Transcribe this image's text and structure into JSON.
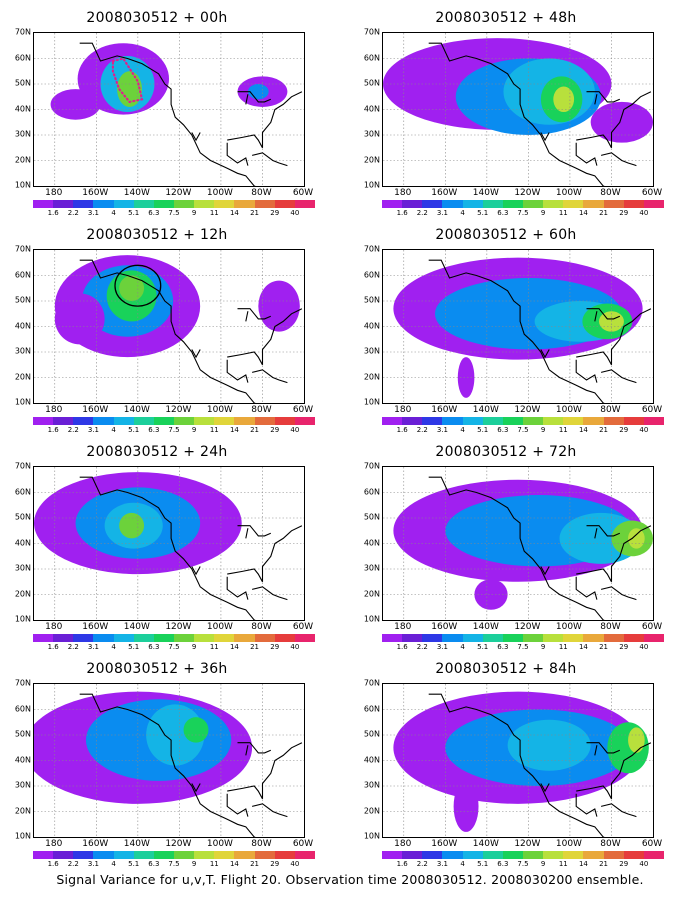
{
  "panels": [
    {
      "title": "2008030512 + 00h",
      "blobs": [
        {
          "lon": -147,
          "lat": 52,
          "rx": 22,
          "ry": 14,
          "level": 1
        },
        {
          "lon": -145,
          "lat": 50,
          "rx": 13,
          "ry": 11,
          "level": 3
        },
        {
          "lon": -144,
          "lat": 48,
          "rx": 6,
          "ry": 7,
          "level": 5
        },
        {
          "lon": -170,
          "lat": 42,
          "rx": 12,
          "ry": 6,
          "level": 1
        },
        {
          "lon": -80,
          "lat": 47,
          "rx": 12,
          "ry": 6,
          "level": 1
        },
        {
          "lon": -82,
          "lat": 47,
          "rx": 5,
          "ry": 3,
          "level": 2
        }
      ],
      "overlay": {
        "type": "dotted",
        "points": [
          [
            -152,
            59
          ],
          [
            -147,
            60
          ],
          [
            -140,
            51
          ],
          [
            -138,
            44
          ],
          [
            -144,
            43
          ],
          [
            -149,
            48
          ],
          [
            -152,
            55
          ],
          [
            -152,
            59
          ]
        ]
      }
    },
    {
      "title": "2008030512 + 48h",
      "blobs": [
        {
          "lon": -135,
          "lat": 50,
          "rx": 55,
          "ry": 18,
          "level": 1
        },
        {
          "lon": -120,
          "lat": 45,
          "rx": 35,
          "ry": 15,
          "level": 2
        },
        {
          "lon": -110,
          "lat": 47,
          "rx": 22,
          "ry": 13,
          "level": 3
        },
        {
          "lon": -104,
          "lat": 44,
          "rx": 10,
          "ry": 9,
          "level": 4
        },
        {
          "lon": -103,
          "lat": 44,
          "rx": 5,
          "ry": 5,
          "level": 6
        },
        {
          "lon": -75,
          "lat": 35,
          "rx": 15,
          "ry": 8,
          "level": 1
        }
      ]
    },
    {
      "title": "2008030512 + 12h",
      "blobs": [
        {
          "lon": -145,
          "lat": 48,
          "rx": 35,
          "ry": 20,
          "level": 1
        },
        {
          "lon": -145,
          "lat": 50,
          "rx": 22,
          "ry": 14,
          "level": 2
        },
        {
          "lon": -143,
          "lat": 52,
          "rx": 12,
          "ry": 10,
          "level": 4
        },
        {
          "lon": -143,
          "lat": 55,
          "rx": 6,
          "ry": 5,
          "level": 5
        },
        {
          "lon": -168,
          "lat": 43,
          "rx": 12,
          "ry": 10,
          "level": 1
        },
        {
          "lon": -72,
          "lat": 48,
          "rx": 10,
          "ry": 10,
          "level": 1
        }
      ],
      "overlay": {
        "type": "ellipse",
        "lon": -140,
        "lat": 56,
        "rx": 11,
        "ry": 8
      }
    },
    {
      "title": "2008030512 + 60h",
      "blobs": [
        {
          "lon": -125,
          "lat": 47,
          "rx": 60,
          "ry": 20,
          "level": 1
        },
        {
          "lon": -120,
          "lat": 45,
          "rx": 45,
          "ry": 14,
          "level": 2
        },
        {
          "lon": -95,
          "lat": 42,
          "rx": 22,
          "ry": 8,
          "level": 3
        },
        {
          "lon": -82,
          "lat": 42,
          "rx": 12,
          "ry": 7,
          "level": 4
        },
        {
          "lon": -80,
          "lat": 42,
          "rx": 6,
          "ry": 4,
          "level": 6
        },
        {
          "lon": -150,
          "lat": 20,
          "rx": 4,
          "ry": 8,
          "level": 1
        }
      ]
    },
    {
      "title": "2008030512 + 24h",
      "blobs": [
        {
          "lon": -140,
          "lat": 48,
          "rx": 50,
          "ry": 20,
          "level": 1
        },
        {
          "lon": -140,
          "lat": 48,
          "rx": 30,
          "ry": 14,
          "level": 2
        },
        {
          "lon": -142,
          "lat": 47,
          "rx": 14,
          "ry": 9,
          "level": 3
        },
        {
          "lon": -143,
          "lat": 47,
          "rx": 6,
          "ry": 5,
          "level": 5
        }
      ]
    },
    {
      "title": "2008030512 + 72h",
      "blobs": [
        {
          "lon": -125,
          "lat": 45,
          "rx": 60,
          "ry": 20,
          "level": 1
        },
        {
          "lon": -115,
          "lat": 45,
          "rx": 45,
          "ry": 14,
          "level": 2
        },
        {
          "lon": -85,
          "lat": 42,
          "rx": 20,
          "ry": 10,
          "level": 3
        },
        {
          "lon": -70,
          "lat": 42,
          "rx": 10,
          "ry": 7,
          "level": 5
        },
        {
          "lon": -68,
          "lat": 42,
          "rx": 4,
          "ry": 4,
          "level": 6
        },
        {
          "lon": -138,
          "lat": 20,
          "rx": 8,
          "ry": 6,
          "level": 1
        }
      ]
    },
    {
      "title": "2008030512 + 36h",
      "blobs": [
        {
          "lon": -140,
          "lat": 45,
          "rx": 55,
          "ry": 22,
          "level": 1
        },
        {
          "lon": -130,
          "lat": 48,
          "rx": 35,
          "ry": 16,
          "level": 2
        },
        {
          "lon": -122,
          "lat": 50,
          "rx": 14,
          "ry": 12,
          "level": 3
        },
        {
          "lon": -112,
          "lat": 52,
          "rx": 6,
          "ry": 5,
          "level": 4
        }
      ]
    },
    {
      "title": "2008030512 + 84h",
      "blobs": [
        {
          "lon": -125,
          "lat": 45,
          "rx": 60,
          "ry": 22,
          "level": 1
        },
        {
          "lon": -115,
          "lat": 45,
          "rx": 45,
          "ry": 15,
          "level": 2
        },
        {
          "lon": -110,
          "lat": 46,
          "rx": 20,
          "ry": 10,
          "level": 3
        },
        {
          "lon": -72,
          "lat": 45,
          "rx": 10,
          "ry": 10,
          "level": 4
        },
        {
          "lon": -68,
          "lat": 48,
          "rx": 4,
          "ry": 5,
          "level": 6
        },
        {
          "lon": -150,
          "lat": 22,
          "rx": 6,
          "ry": 10,
          "level": 1
        }
      ]
    }
  ],
  "y_labels": [
    "70N",
    "60N",
    "50N",
    "40N",
    "30N",
    "20N",
    "10N"
  ],
  "x_labels": [
    "180",
    "160W",
    "140W",
    "120W",
    "100W",
    "80W",
    "60W"
  ],
  "legend": {
    "colors": [
      "#a020f0",
      "#6a1fd6",
      "#2e38e6",
      "#0a8cf0",
      "#14b4e6",
      "#1ccf9b",
      "#19d25a",
      "#6cd23b",
      "#b8e03c",
      "#e0d53a",
      "#e9a83b",
      "#e36b3c",
      "#e63c3c",
      "#e8246c"
    ],
    "labels": [
      "1.6",
      "2.2",
      "3.1",
      "4",
      "5.1",
      "6.3",
      "7.5",
      "9",
      "11",
      "14",
      "21",
      "29",
      "40"
    ]
  },
  "level_colors": [
    "#ffffff",
    "#a020f0",
    "#0a8cf0",
    "#14b4e6",
    "#19d25a",
    "#6cd23b",
    "#b8e03c",
    "#e0d53a"
  ],
  "caption": "Signal Variance for u,v,T. Flight 20. Observation time 2008030512. 2008030200 ensemble."
}
